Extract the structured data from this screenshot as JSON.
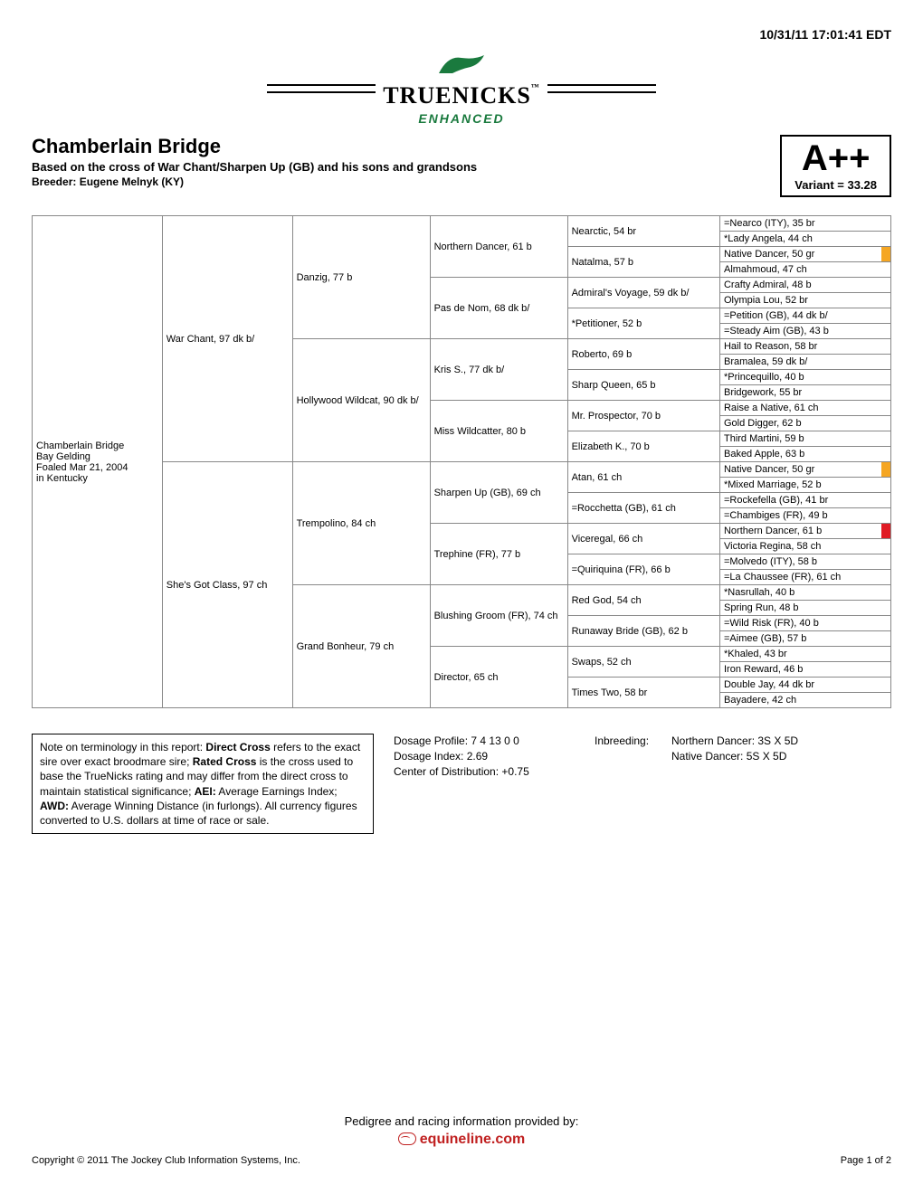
{
  "timestamp": "10/31/11 17:01:41 EDT",
  "logo": {
    "main": "TRUENICKS",
    "sub": "ENHANCED"
  },
  "header": {
    "horse_name": "Chamberlain Bridge",
    "based_on": "Based on the cross of War Chant/Sharpen Up (GB) and his sons and grandsons",
    "breeder": "Breeder: Eugene Melnyk (KY)",
    "grade": "A++",
    "variant": "Variant = 33.28"
  },
  "subject": {
    "name": "Chamberlain Bridge",
    "line2": "Bay Gelding",
    "line3": "Foaled Mar 21, 2004",
    "line4": "in Kentucky"
  },
  "gen1": [
    "War Chant, 97 dk b/",
    "She's Got Class, 97 ch"
  ],
  "gen2": [
    "Danzig, 77 b",
    "Hollywood Wildcat, 90 dk b/",
    "Trempolino, 84 ch",
    "Grand Bonheur, 79 ch"
  ],
  "gen3": [
    "Northern Dancer, 61 b",
    "Pas de Nom, 68 dk b/",
    "Kris S., 77 dk b/",
    "Miss Wildcatter, 80 b",
    "Sharpen Up (GB), 69 ch",
    "Trephine (FR), 77 b",
    "Blushing Groom (FR), 74 ch",
    "Director, 65 ch"
  ],
  "gen4": [
    "Nearctic, 54 br",
    "Natalma, 57 b",
    "Admiral's Voyage, 59 dk b/",
    "*Petitioner, 52 b",
    "Roberto, 69 b",
    "Sharp Queen, 65 b",
    "Mr. Prospector, 70 b",
    "Elizabeth K., 70 b",
    "Atan, 61 ch",
    "=Rocchetta (GB), 61 ch",
    "Viceregal, 66 ch",
    "=Quiriquina (FR), 66 b",
    "Red God, 54 ch",
    "Runaway Bride (GB), 62 b",
    "Swaps, 52 ch",
    "Times Two, 58 br"
  ],
  "gen5": [
    {
      "t": "=Nearco (ITY), 35 br"
    },
    {
      "t": "*Lady Angela, 44 ch"
    },
    {
      "t": "Native Dancer, 50 gr",
      "m": "orange"
    },
    {
      "t": "Almahmoud, 47 ch"
    },
    {
      "t": "Crafty Admiral, 48 b"
    },
    {
      "t": "Olympia Lou, 52 br"
    },
    {
      "t": "=Petition (GB), 44 dk b/"
    },
    {
      "t": "=Steady Aim (GB), 43 b"
    },
    {
      "t": "Hail to Reason, 58 br"
    },
    {
      "t": "Bramalea, 59 dk b/"
    },
    {
      "t": "*Princequillo, 40 b"
    },
    {
      "t": "Bridgework, 55 br"
    },
    {
      "t": "Raise a Native, 61 ch"
    },
    {
      "t": "Gold Digger, 62 b"
    },
    {
      "t": "Third Martini, 59 b"
    },
    {
      "t": "Baked Apple, 63 b"
    },
    {
      "t": "Native Dancer, 50 gr",
      "m": "orange"
    },
    {
      "t": "*Mixed Marriage, 52 b"
    },
    {
      "t": "=Rockefella (GB), 41 br"
    },
    {
      "t": "=Chambiges (FR), 49 b"
    },
    {
      "t": "Northern Dancer, 61 b",
      "m": "red"
    },
    {
      "t": "Victoria Regina, 58 ch"
    },
    {
      "t": "=Molvedo (ITY), 58 b"
    },
    {
      "t": "=La Chaussee (FR), 61 ch"
    },
    {
      "t": "*Nasrullah, 40 b"
    },
    {
      "t": "Spring Run, 48 b"
    },
    {
      "t": "=Wild Risk (FR), 40 b"
    },
    {
      "t": "=Aimee (GB), 57 b"
    },
    {
      "t": "*Khaled, 43 br"
    },
    {
      "t": "Iron Reward, 46 b"
    },
    {
      "t": "Double Jay, 44 dk br"
    },
    {
      "t": "Bayadere, 42 ch"
    }
  ],
  "note_text_parts": {
    "p1": "Note on terminology in this report: ",
    "b1": "Direct Cross",
    "p2": " refers to the exact sire over exact broodmare sire; ",
    "b2": "Rated Cross",
    "p3": " is the cross used to base the TrueNicks rating and may differ from the direct cross to maintain statistical significance; ",
    "b3": "AEI:",
    "p4": " Average Earnings Index; ",
    "b4": "AWD:",
    "p5": " Average Winning Distance (in furlongs). All currency figures converted to U.S. dollars at time of race or sale."
  },
  "dosage": {
    "profile": "Dosage Profile: 7 4 13 0 0",
    "index": "Dosage Index: 2.69",
    "center": "Center of Distribution: +0.75"
  },
  "inbreeding": {
    "label": "Inbreeding:",
    "lines": [
      "Northern Dancer: 3S X 5D",
      "Native Dancer: 5S X 5D"
    ]
  },
  "footer": {
    "provided": "Pedigree and racing information provided by:",
    "brand": "equineline.com",
    "copyright": "Copyright © 2011 The Jockey Club Information Systems, Inc.",
    "page": "Page 1 of 2"
  }
}
